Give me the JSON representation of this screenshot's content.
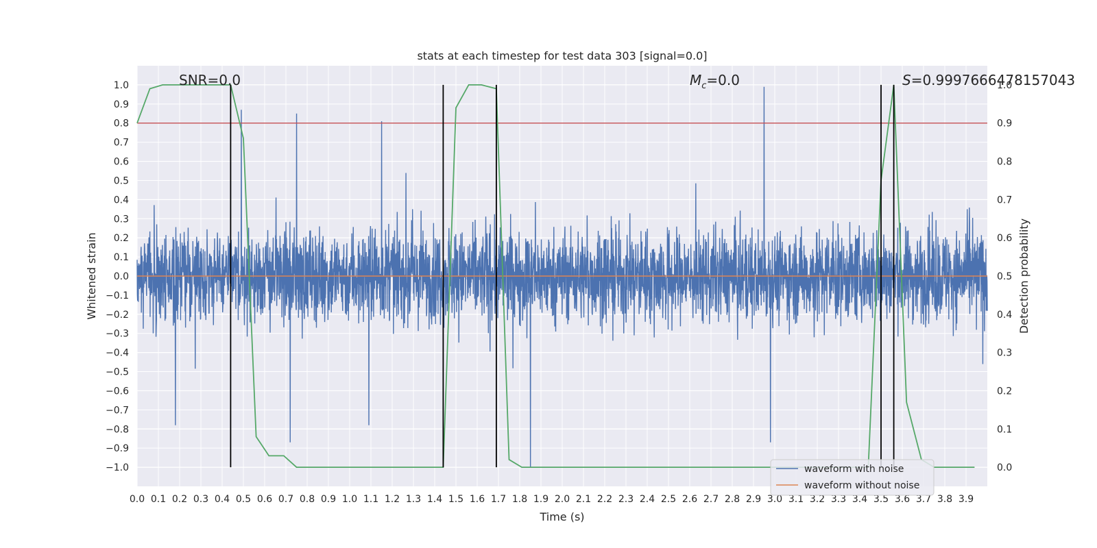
{
  "chart_data": {
    "type": "line",
    "title": "stats at each timestep for test data 303 [signal=0.0]",
    "xlabel": "Time (s)",
    "ylabel": "Whitened strain",
    "ylabel_right": "Detection probability",
    "xlim": [
      0.0,
      4.0
    ],
    "ylim": [
      -1.1,
      1.1
    ],
    "ylim_right": [
      -0.05,
      1.05
    ],
    "grid": true,
    "legend_position": "lower-right",
    "x_ticks": [
      0.0,
      0.1,
      0.2,
      0.3,
      0.4,
      0.5,
      0.6,
      0.7,
      0.8,
      0.9,
      1.0,
      1.1,
      1.2,
      1.3,
      1.4,
      1.5,
      1.6,
      1.7,
      1.8,
      1.9,
      2.0,
      2.1,
      2.2,
      2.3,
      2.4,
      2.5,
      2.6,
      2.7,
      2.8,
      2.9,
      3.0,
      3.1,
      3.2,
      3.3,
      3.4,
      3.5,
      3.6,
      3.7,
      3.8,
      3.9
    ],
    "x_tick_labels": [
      "0.0",
      "0.1",
      "0.2",
      "0.3",
      "0.4",
      "0.5",
      "0.6",
      "0.7",
      "0.8",
      "0.9",
      "1.0",
      "1.1",
      "1.2",
      "1.3",
      "1.4",
      "1.5",
      "1.6",
      "1.7",
      "1.8",
      "1.9",
      "2.0",
      "2.1",
      "2.2",
      "2.3",
      "2.4",
      "2.5",
      "2.6",
      "2.7",
      "2.8",
      "2.9",
      "3.0",
      "3.1",
      "3.2",
      "3.3",
      "3.4",
      "3.5",
      "3.6",
      "3.7",
      "3.8",
      "3.9"
    ],
    "y_ticks": [
      1.0,
      0.9,
      0.8,
      0.7,
      0.6,
      0.5,
      0.4,
      0.3,
      0.2,
      0.1,
      0.0,
      -0.1,
      -0.2,
      -0.3,
      -0.4,
      -0.5,
      -0.6,
      -0.7,
      -0.8,
      -0.9,
      -1.0
    ],
    "y_tick_labels": [
      "1.0",
      "0.9",
      "0.8",
      "0.7",
      "0.6",
      "0.5",
      "0.4",
      "0.3",
      "0.2",
      "0.1",
      "0.0",
      "−0.1",
      "−0.2",
      "−0.3",
      "−0.4",
      "−0.5",
      "−0.6",
      "−0.7",
      "−0.8",
      "−0.9",
      "−1.0"
    ],
    "y_right_ticks": [
      1.0,
      0.9,
      0.8,
      0.7,
      0.6,
      0.5,
      0.4,
      0.3,
      0.2,
      0.1,
      0.0
    ],
    "y_right_tick_labels": [
      "1.0",
      "0.9",
      "0.8",
      "0.7",
      "0.6",
      "0.5",
      "0.4",
      "0.3",
      "0.2",
      "0.1",
      "0.0"
    ],
    "series": [
      {
        "name": "waveform with noise",
        "axis": "left",
        "color": "#4c72b0",
        "kind": "noise",
        "x_range": [
          0.0,
          4.0
        ],
        "amplitude_typical": 0.4,
        "amplitude_peak": 0.99,
        "notable_peaks": [
          {
            "x": 0.49,
            "y": 0.87
          },
          {
            "x": 0.75,
            "y": 0.85
          },
          {
            "x": 0.72,
            "y": -0.87
          },
          {
            "x": 1.15,
            "y": 0.81
          },
          {
            "x": 1.85,
            "y": -1.0
          },
          {
            "x": 2.95,
            "y": 0.99
          },
          {
            "x": 2.98,
            "y": -0.87
          },
          {
            "x": 0.18,
            "y": -0.78
          },
          {
            "x": 1.09,
            "y": -0.78
          }
        ]
      },
      {
        "name": "waveform without noise",
        "axis": "left",
        "color": "#dd8452",
        "x": [
          0.0,
          4.0
        ],
        "y": [
          0.0,
          0.0
        ]
      },
      {
        "name": "",
        "axis": "right",
        "color": "#55a868",
        "x": [
          0.0,
          0.06,
          0.12,
          0.19,
          0.25,
          0.31,
          0.37,
          0.44,
          0.5,
          0.56,
          0.62,
          0.69,
          0.75,
          0.81,
          0.87,
          0.94,
          1.0,
          1.06,
          1.12,
          1.19,
          1.25,
          1.31,
          1.37,
          1.44,
          1.5,
          1.56,
          1.62,
          1.69,
          1.75,
          1.81,
          1.87,
          1.94,
          2.0,
          2.5,
          3.0,
          3.44,
          3.5,
          3.56,
          3.62,
          3.69,
          3.75,
          3.81,
          3.87,
          3.94
        ],
        "y": [
          0.9,
          0.99,
          1.0,
          1.0,
          1.0,
          1.0,
          1.0,
          1.0,
          0.86,
          0.08,
          0.03,
          0.03,
          0.0,
          0.0,
          0.0,
          0.0,
          0.0,
          0.0,
          0.0,
          0.0,
          0.0,
          0.0,
          0.0,
          0.0,
          0.94,
          1.0,
          1.0,
          0.99,
          0.02,
          0.0,
          0.0,
          0.0,
          0.0,
          0.0,
          0.0,
          0.0,
          0.75,
          1.0,
          0.17,
          0.02,
          0.0,
          0.0,
          0.0,
          0.0
        ]
      }
    ],
    "threshold_line": {
      "axis": "right",
      "y": 0.9,
      "color": "#c44e52"
    },
    "vertical_lines": [
      {
        "x": 0.44,
        "y_from": -1.0,
        "y_to": 1.0
      },
      {
        "x": 1.44,
        "y_from": -1.0,
        "y_to": 1.0
      },
      {
        "x": 1.69,
        "y_from": -1.0,
        "y_to": 1.0
      },
      {
        "x": 3.5,
        "y_from": -1.0,
        "y_to": 1.0
      },
      {
        "x": 3.56,
        "y_from": -1.0,
        "y_to": 1.0
      }
    ],
    "annotations": {
      "snr": "SNR=0.0",
      "mc_symbol": "M",
      "mc_sub": "c",
      "mc_value": "=0.0",
      "s_symbol": "S",
      "s_value": "=0.9997666478157043"
    },
    "legend_entries": [
      "waveform with noise",
      "waveform without noise"
    ]
  },
  "colors": {
    "plot_background": "#eaeaf2",
    "grid": "#ffffff",
    "text": "#262626",
    "vertical_line": "#000000"
  }
}
